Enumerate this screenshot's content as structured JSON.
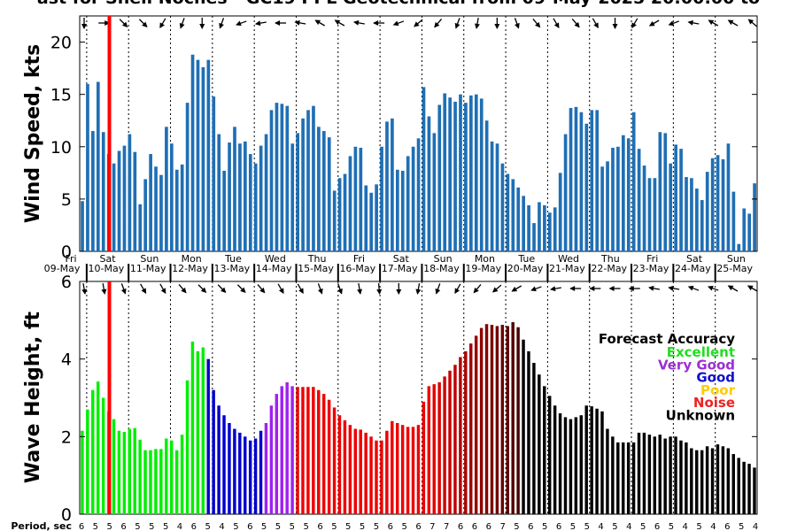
{
  "title": "ast for Shell Noches - GC19 PPL Geotechnical from 09-May-2025 20:00:00 to",
  "chart_data": [
    {
      "type": "bar",
      "panel": "wind",
      "ylabel": "Wind Speed, kts",
      "ylim": [
        0,
        22.5
      ],
      "yticks": [
        0,
        5,
        10,
        15,
        20
      ],
      "bar_color": "#1f6fb4",
      "values": [
        4.8,
        16,
        11.5,
        16.2,
        11.4,
        9.3,
        8.4,
        9.6,
        10.1,
        11.2,
        9.5,
        4.5,
        6.9,
        9.3,
        8.1,
        7.3,
        11.9,
        10.3,
        7.8,
        8.3,
        14.2,
        18.8,
        18.3,
        17.6,
        18.3,
        14.8,
        11.2,
        7.7,
        10.4,
        11.9,
        10.3,
        10.5,
        9.3,
        8.4,
        10.1,
        11.2,
        13.5,
        14.2,
        14.1,
        13.9,
        10.3,
        11.3,
        12.7,
        13.5,
        13.9,
        11.9,
        11.5,
        10.9,
        5.8,
        7,
        7.4,
        9.1,
        10,
        9.9,
        6.3,
        5.6,
        6.4,
        10,
        12.4,
        12.7,
        7.8,
        7.7,
        9.1,
        10,
        10.8,
        15.7,
        12.9,
        11.3,
        14,
        15.1,
        14.7,
        14.3,
        15,
        14.2,
        14.9,
        15,
        14.6,
        12.5,
        10.5,
        10.3,
        8.4,
        7.4,
        6.9,
        6.1,
        5.3,
        4.4,
        2.7,
        4.7,
        4.4,
        3.7,
        4.2,
        7.5,
        11.2,
        13.7,
        13.8,
        13.3,
        12.2,
        13.5,
        13.5,
        8.1,
        8.6,
        9.9,
        10,
        11.1,
        10.8,
        13.3,
        9.8,
        8.2,
        7,
        7,
        11.4,
        11.3,
        8.4,
        10.2,
        9.8,
        7.1,
        7,
        6,
        4.9,
        7.6,
        8.9,
        9.2,
        8.8,
        10.3,
        5.7,
        0.7,
        4.1,
        3.6,
        6.5
      ]
    },
    {
      "type": "bar",
      "panel": "wave",
      "ylabel": "Wave Height, ft",
      "xlabel": "Period, sec",
      "ylim": [
        0,
        6
      ],
      "yticks": [
        0,
        2,
        4,
        6
      ],
      "values": [
        2.15,
        2.7,
        3.2,
        3.42,
        3.0,
        2.65,
        2.45,
        2.15,
        2.12,
        2.2,
        2.22,
        1.92,
        1.65,
        1.65,
        1.68,
        1.68,
        1.95,
        1.9,
        1.65,
        2.05,
        3.45,
        4.45,
        4.2,
        4.3,
        4.0,
        3.2,
        2.8,
        2.55,
        2.35,
        2.2,
        2.1,
        2.0,
        1.9,
        1.95,
        2.15,
        2.35,
        2.8,
        3.1,
        3.3,
        3.4,
        3.3,
        3.28,
        3.28,
        3.28,
        3.28,
        3.2,
        3.1,
        2.95,
        2.75,
        2.55,
        2.42,
        2.3,
        2.2,
        2.18,
        2.1,
        2.0,
        1.9,
        1.9,
        2.15,
        2.4,
        2.35,
        2.3,
        2.25,
        2.25,
        2.3,
        2.9,
        3.3,
        3.35,
        3.4,
        3.55,
        3.7,
        3.85,
        4.05,
        4.2,
        4.4,
        4.6,
        4.8,
        4.9,
        4.88,
        4.85,
        4.88,
        4.85,
        4.95,
        4.82,
        4.5,
        4.2,
        3.9,
        3.6,
        3.3,
        3.05,
        2.8,
        2.6,
        2.5,
        2.45,
        2.5,
        2.55,
        2.8,
        2.78,
        2.72,
        2.65,
        2.2,
        2.0,
        1.85,
        1.85,
        1.85,
        1.85,
        2.1,
        2.1,
        2.05,
        2.0,
        2.05,
        1.95,
        2.0,
        2.0,
        1.9,
        1.85,
        1.7,
        1.65,
        1.65,
        1.75,
        1.7,
        1.8,
        1.75,
        1.7,
        1.55,
        1.45,
        1.35,
        1.3,
        1.2
      ],
      "accuracy_segments": [
        {
          "label": "Excellent",
          "color": "#00ee00",
          "count": 24
        },
        {
          "label": "Good",
          "color": "#0000cc",
          "count": 11
        },
        {
          "label": "Very Good",
          "color": "#a020f0",
          "count": 6
        },
        {
          "label": "Noise",
          "color": "#ee0000",
          "count": 25
        },
        {
          "label": "Noise",
          "color": "#ee0000",
          "count": 18,
          "shade_to": "#4a0000"
        },
        {
          "label": "Unknown",
          "color": "#000000",
          "count": 44
        }
      ]
    }
  ],
  "days": [
    {
      "dow": "Fri",
      "date": "09-May"
    },
    {
      "dow": "Sat",
      "date": "10-May"
    },
    {
      "dow": "Sun",
      "date": "11-May"
    },
    {
      "dow": "Mon",
      "date": "12-May"
    },
    {
      "dow": "Tue",
      "date": "13-May"
    },
    {
      "dow": "Wed",
      "date": "14-May"
    },
    {
      "dow": "Thu",
      "date": "15-May"
    },
    {
      "dow": "Fri",
      "date": "16-May"
    },
    {
      "dow": "Sat",
      "date": "17-May"
    },
    {
      "dow": "Sun",
      "date": "18-May"
    },
    {
      "dow": "Mon",
      "date": "19-May"
    },
    {
      "dow": "Tue",
      "date": "20-May"
    },
    {
      "dow": "Wed",
      "date": "21-May"
    },
    {
      "dow": "Thu",
      "date": "22-May"
    },
    {
      "dow": "Fri",
      "date": "23-May"
    },
    {
      "dow": "Sat",
      "date": "24-May"
    },
    {
      "dow": "Sun",
      "date": "25-May"
    }
  ],
  "wind_arrow_angles_deg": [
    180,
    90,
    135,
    135,
    210,
    200,
    180,
    200,
    250,
    260,
    270,
    280,
    300,
    300,
    280,
    270,
    250,
    230,
    220,
    200,
    190,
    180,
    160,
    140,
    150,
    140,
    150,
    180,
    210,
    240,
    250,
    280,
    300,
    300,
    310
  ],
  "wave_arrow_angles_deg": [
    170,
    170,
    160,
    150,
    150,
    140,
    135,
    135,
    135,
    140,
    150,
    150,
    160,
    160,
    170,
    175,
    180,
    190,
    200,
    210,
    220,
    230,
    240,
    250,
    260,
    270,
    270,
    270,
    270,
    280,
    280,
    290,
    290,
    300,
    300
  ],
  "period_values": [
    6,
    5,
    5,
    6,
    5,
    5,
    5,
    4,
    6,
    5,
    4,
    5,
    6,
    5,
    5,
    5,
    5,
    6,
    5,
    5,
    5,
    5,
    6,
    5,
    6,
    7,
    7,
    6,
    6,
    6,
    7,
    5,
    6,
    5,
    6,
    5,
    5,
    4,
    5,
    4,
    5,
    6,
    5,
    4,
    5,
    4,
    6,
    5,
    4
  ],
  "legend": {
    "title": "Forecast Accuracy",
    "items": [
      {
        "label": "Excellent",
        "color": "#22dd22"
      },
      {
        "label": "Very Good",
        "color": "#9b30d0"
      },
      {
        "label": "Good",
        "color": "#1010cc"
      },
      {
        "label": "Poor",
        "color": "#ffcc00"
      },
      {
        "label": "Noise",
        "color": "#ee2222"
      },
      {
        "label": "Unknown",
        "color": "#000000"
      }
    ]
  },
  "marker_color": "#ff0000"
}
